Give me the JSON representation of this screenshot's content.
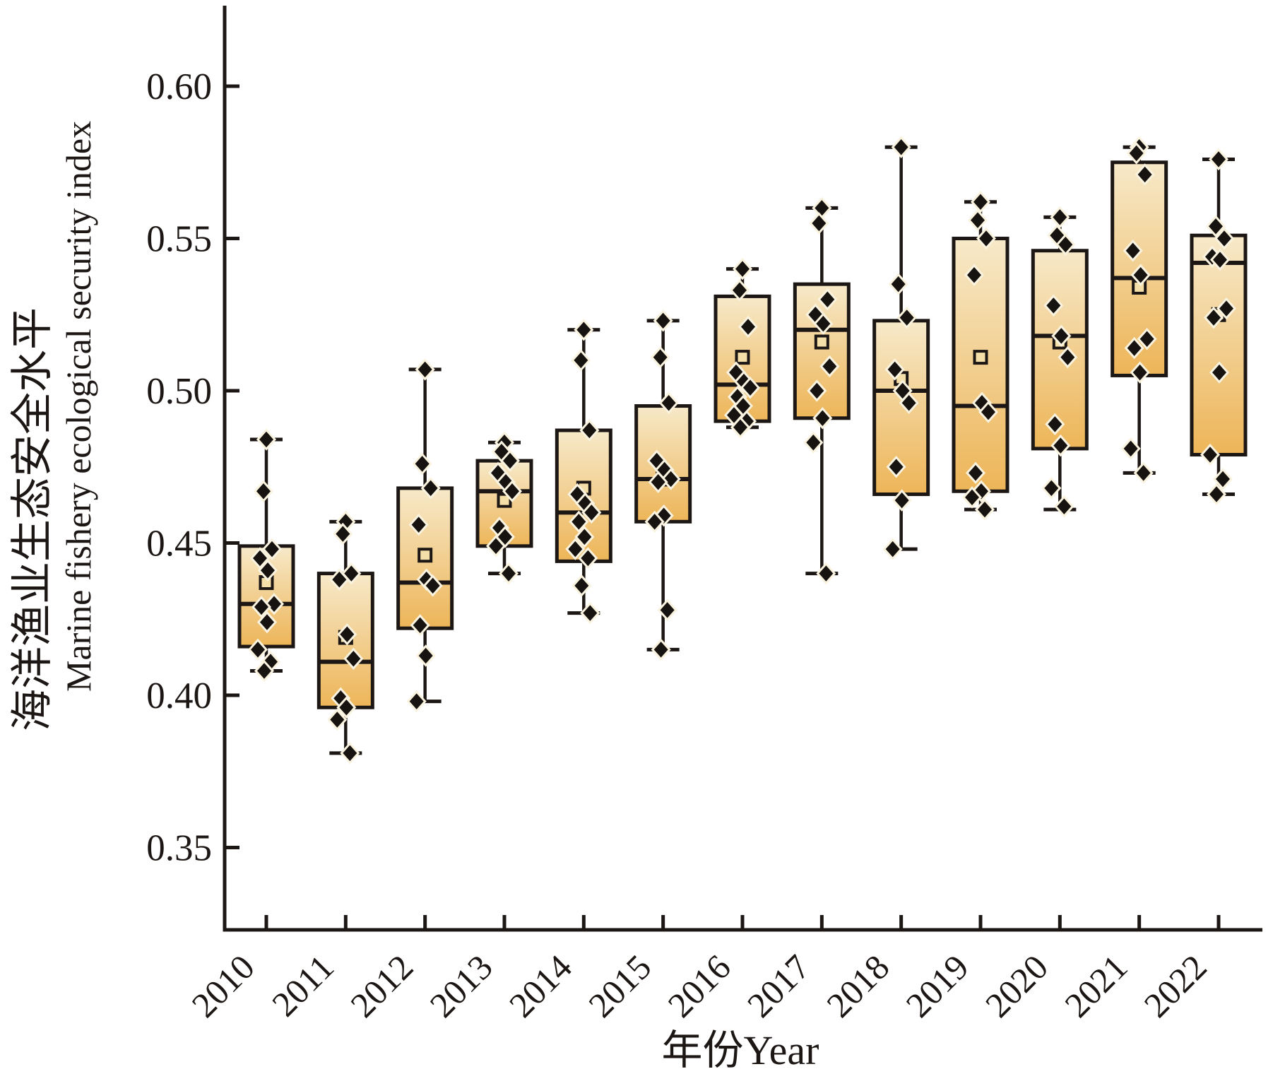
{
  "figure": {
    "background": "#ffffff"
  },
  "axes": {
    "x_title": "年份Year",
    "y_title_zh": "海洋渔业生态安全水平",
    "y_title_en": "Marine fishery ecological security index",
    "y_tick_labels": [
      "0.35",
      "0.40",
      "0.45",
      "0.50",
      "0.55",
      "0.60"
    ],
    "x_tick_labels": [
      "2010",
      "2011",
      "2012",
      "2013",
      "2014",
      "2015",
      "2016",
      "2017",
      "2018",
      "2019",
      "2020",
      "2021",
      "2022"
    ]
  },
  "chart_data": {
    "type": "box",
    "title": "",
    "xlabel": "年份Year",
    "ylabel": "海洋渔业生态安全水平 Marine fishery ecological security index",
    "categories": [
      "2010",
      "2011",
      "2012",
      "2013",
      "2014",
      "2015",
      "2016",
      "2017",
      "2018",
      "2019",
      "2020",
      "2021",
      "2022"
    ],
    "y_ticks": [
      0.35,
      0.4,
      0.45,
      0.5,
      0.55,
      0.6
    ],
    "ylim": [
      0.323,
      0.626
    ],
    "grid": false,
    "legend": false,
    "marker": "diamond",
    "mean_marker": "open-square",
    "colors": {
      "box_fill_top": "#f7e9c9",
      "box_fill_bottom": "#edb558",
      "line": "#1c1714",
      "point": "#171310",
      "point_halo": "#faf3e0",
      "mean_fill": "#f5dfa9"
    },
    "series": [
      {
        "year": "2010",
        "min": 0.408,
        "q1": 0.416,
        "median": 0.43,
        "q3": 0.449,
        "max": 0.484,
        "mean": 0.437,
        "points": [
          0.484,
          0.467,
          0.448,
          0.445,
          0.441,
          0.43,
          0.429,
          0.424,
          0.415,
          0.411,
          0.408
        ]
      },
      {
        "year": "2011",
        "min": 0.381,
        "q1": 0.396,
        "median": 0.411,
        "q3": 0.44,
        "max": 0.457,
        "mean": 0.419,
        "points": [
          0.457,
          0.453,
          0.44,
          0.438,
          0.42,
          0.412,
          0.399,
          0.396,
          0.392,
          0.381
        ]
      },
      {
        "year": "2012",
        "min": 0.398,
        "q1": 0.422,
        "median": 0.437,
        "q3": 0.468,
        "max": 0.507,
        "mean": 0.446,
        "points": [
          0.507,
          0.476,
          0.468,
          0.456,
          0.438,
          0.436,
          0.423,
          0.413,
          0.398
        ]
      },
      {
        "year": "2013",
        "min": 0.44,
        "q1": 0.449,
        "median": 0.467,
        "q3": 0.477,
        "max": 0.483,
        "mean": 0.464,
        "points": [
          0.483,
          0.48,
          0.477,
          0.473,
          0.47,
          0.467,
          0.455,
          0.452,
          0.449,
          0.44
        ]
      },
      {
        "year": "2014",
        "min": 0.427,
        "q1": 0.444,
        "median": 0.46,
        "q3": 0.487,
        "max": 0.52,
        "mean": 0.468,
        "points": [
          0.52,
          0.51,
          0.487,
          0.466,
          0.463,
          0.46,
          0.457,
          0.452,
          0.448,
          0.445,
          0.436,
          0.427
        ]
      },
      {
        "year": "2015",
        "min": 0.415,
        "q1": 0.457,
        "median": 0.471,
        "q3": 0.495,
        "max": 0.523,
        "mean": 0.471,
        "points": [
          0.523,
          0.511,
          0.496,
          0.477,
          0.474,
          0.471,
          0.47,
          0.459,
          0.457,
          0.428,
          0.415
        ]
      },
      {
        "year": "2016",
        "min": 0.488,
        "q1": 0.49,
        "median": 0.502,
        "q3": 0.531,
        "max": 0.54,
        "mean": 0.511,
        "points": [
          0.54,
          0.533,
          0.521,
          0.506,
          0.503,
          0.501,
          0.498,
          0.495,
          0.492,
          0.49,
          0.488
        ]
      },
      {
        "year": "2017",
        "min": 0.44,
        "q1": 0.491,
        "median": 0.52,
        "q3": 0.535,
        "max": 0.56,
        "mean": 0.516,
        "points": [
          0.56,
          0.555,
          0.53,
          0.525,
          0.522,
          0.508,
          0.5,
          0.491,
          0.483,
          0.44
        ]
      },
      {
        "year": "2018",
        "min": 0.448,
        "q1": 0.466,
        "median": 0.5,
        "q3": 0.523,
        "max": 0.58,
        "mean": 0.504,
        "points": [
          0.58,
          0.535,
          0.524,
          0.507,
          0.5,
          0.496,
          0.475,
          0.464,
          0.448
        ]
      },
      {
        "year": "2019",
        "min": 0.461,
        "q1": 0.467,
        "median": 0.495,
        "q3": 0.55,
        "max": 0.562,
        "mean": 0.511,
        "points": [
          0.562,
          0.556,
          0.55,
          0.538,
          0.496,
          0.493,
          0.473,
          0.467,
          0.465,
          0.461
        ]
      },
      {
        "year": "2020",
        "min": 0.461,
        "q1": 0.481,
        "median": 0.518,
        "q3": 0.546,
        "max": 0.557,
        "mean": 0.516,
        "points": [
          0.557,
          0.551,
          0.548,
          0.528,
          0.518,
          0.511,
          0.489,
          0.482,
          0.468,
          0.462
        ]
      },
      {
        "year": "2021",
        "min": 0.473,
        "q1": 0.505,
        "median": 0.537,
        "q3": 0.575,
        "max": 0.58,
        "mean": 0.534,
        "points": [
          0.58,
          0.578,
          0.571,
          0.546,
          0.538,
          0.517,
          0.514,
          0.506,
          0.481,
          0.473
        ]
      },
      {
        "year": "2022",
        "min": 0.466,
        "q1": 0.479,
        "median": 0.542,
        "q3": 0.551,
        "max": 0.576,
        "mean": 0.525,
        "points": [
          0.576,
          0.554,
          0.55,
          0.544,
          0.543,
          0.527,
          0.524,
          0.506,
          0.479,
          0.471,
          0.466
        ]
      }
    ]
  }
}
